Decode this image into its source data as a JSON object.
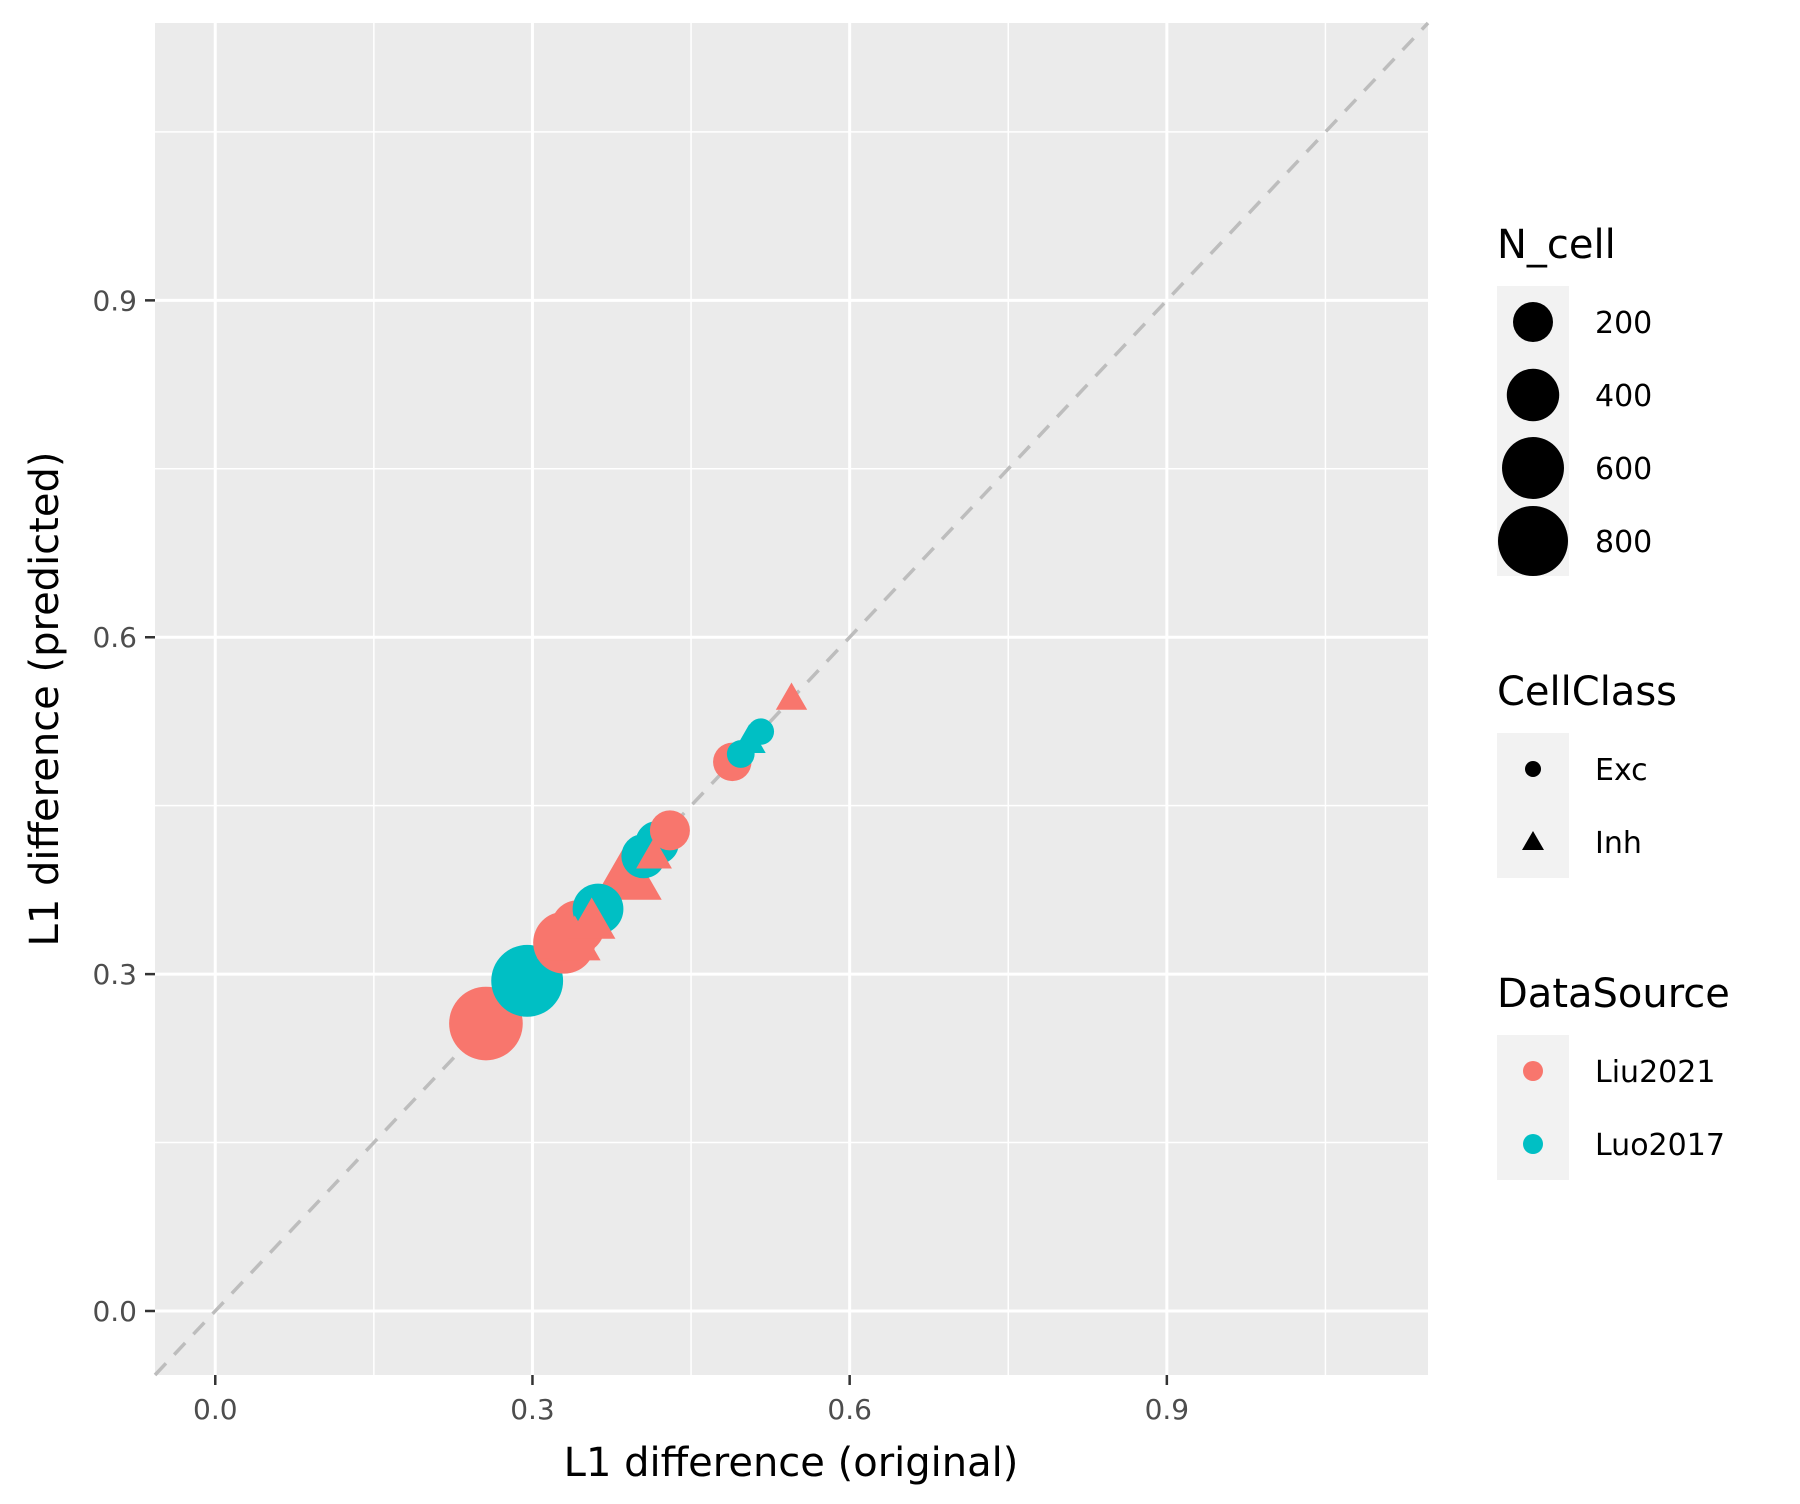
{
  "chart_data": {
    "type": "scatter",
    "title": "",
    "xlabel": "L1 difference (original)",
    "ylabel": "L1 difference (predicted)",
    "xlim": [
      -0.057,
      1.147
    ],
    "ylim": [
      -0.057,
      1.147
    ],
    "x_ticks": [
      "0.0",
      "0.3",
      "0.6",
      "0.9"
    ],
    "y_ticks": [
      "0.0",
      "0.3",
      "0.6",
      "0.9"
    ],
    "x_tick_values": [
      0.0,
      0.3,
      0.6,
      0.9
    ],
    "y_tick_values": [
      0.0,
      0.3,
      0.6,
      0.9
    ],
    "grid": true,
    "reference_line": "y = x (dashed)",
    "legend_position": "right",
    "colors": {
      "Liu2021": "#f8766d",
      "Luo2017": "#00bfc4",
      "panel": "#ebebeb",
      "grid": "#ffffff",
      "reference_line": "#bdbdbd"
    },
    "legends": {
      "size": {
        "title": "N_cell",
        "labels": [
          "200",
          "400",
          "600",
          "800"
        ],
        "values": [
          200,
          400,
          600,
          800
        ]
      },
      "shape": {
        "title": "CellClass",
        "labels": [
          "Exc",
          "Inh"
        ]
      },
      "color": {
        "title": "DataSource",
        "labels": [
          "Liu2021",
          "Luo2017"
        ]
      }
    },
    "points": [
      {
        "x": 0.545,
        "y": 0.545,
        "n_cell": 60,
        "cell_class": "Inh",
        "source": "Liu2021"
      },
      {
        "x": 0.516,
        "y": 0.516,
        "n_cell": 60,
        "cell_class": "Exc",
        "source": "Luo2017"
      },
      {
        "x": 0.505,
        "y": 0.507,
        "n_cell": 70,
        "cell_class": "Inh",
        "source": "Luo2017"
      },
      {
        "x": 0.497,
        "y": 0.496,
        "n_cell": 70,
        "cell_class": "Exc",
        "source": "Luo2017"
      },
      {
        "x": 0.489,
        "y": 0.489,
        "n_cell": 180,
        "cell_class": "Exc",
        "source": "Liu2021"
      },
      {
        "x": 0.43,
        "y": 0.428,
        "n_cell": 200,
        "cell_class": "Exc",
        "source": "Liu2021"
      },
      {
        "x": 0.418,
        "y": 0.417,
        "n_cell": 250,
        "cell_class": "Exc",
        "source": "Luo2017"
      },
      {
        "x": 0.415,
        "y": 0.405,
        "n_cell": 90,
        "cell_class": "Inh",
        "source": "Liu2021"
      },
      {
        "x": 0.405,
        "y": 0.405,
        "n_cell": 260,
        "cell_class": "Exc",
        "source": "Luo2017"
      },
      {
        "x": 0.39,
        "y": 0.387,
        "n_cell": 500,
        "cell_class": "Inh",
        "source": "Liu2021"
      },
      {
        "x": 0.362,
        "y": 0.358,
        "n_cell": 370,
        "cell_class": "Exc",
        "source": "Luo2017"
      },
      {
        "x": 0.356,
        "y": 0.346,
        "n_cell": 200,
        "cell_class": "Inh",
        "source": "Liu2021"
      },
      {
        "x": 0.343,
        "y": 0.342,
        "n_cell": 420,
        "cell_class": "Exc",
        "source": "Liu2021"
      },
      {
        "x": 0.34,
        "y": 0.328,
        "n_cell": 250,
        "cell_class": "Inh",
        "source": "Liu2021"
      },
      {
        "x": 0.332,
        "y": 0.332,
        "n_cell": 350,
        "cell_class": "Inh",
        "source": "Liu2021"
      },
      {
        "x": 0.33,
        "y": 0.328,
        "n_cell": 600,
        "cell_class": "Exc",
        "source": "Liu2021"
      },
      {
        "x": 0.295,
        "y": 0.294,
        "n_cell": 850,
        "cell_class": "Exc",
        "source": "Luo2017"
      },
      {
        "x": 0.256,
        "y": 0.256,
        "n_cell": 900,
        "cell_class": "Exc",
        "source": "Liu2021"
      }
    ]
  }
}
